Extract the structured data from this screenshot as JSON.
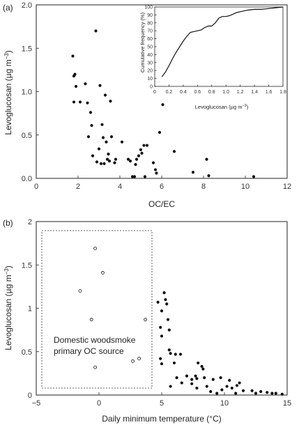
{
  "chart_data": [
    {
      "panel": "(a)",
      "type": "scatter",
      "xlabel": "OC/EC",
      "ylabel_main": "Levoglucosan (µg m",
      "ylabel_exp": "−3",
      "ylabel_close": ")",
      "xlim": [
        0,
        12
      ],
      "ylim": [
        0,
        2.0
      ],
      "xticks": [
        "0",
        "2",
        "4",
        "6",
        "8",
        "10",
        "12"
      ],
      "yticks": [
        "0.0",
        "0.5",
        "1.0",
        "1.5",
        "2.0"
      ],
      "points": [
        [
          1.75,
          1.41
        ],
        [
          1.8,
          1.18
        ],
        [
          1.85,
          1.2
        ],
        [
          1.9,
          1.06
        ],
        [
          1.8,
          0.88
        ],
        [
          2.1,
          0.88
        ],
        [
          2.35,
          1.09
        ],
        [
          2.45,
          0.87
        ],
        [
          2.5,
          0.48
        ],
        [
          2.6,
          0.76
        ],
        [
          2.65,
          0.61
        ],
        [
          2.7,
          0.26
        ],
        [
          2.85,
          1.7
        ],
        [
          2.9,
          0.19
        ],
        [
          3.0,
          0.34
        ],
        [
          3.05,
          1.07
        ],
        [
          3.1,
          0.17
        ],
        [
          3.15,
          0.62
        ],
        [
          3.2,
          0.47
        ],
        [
          3.25,
          0.17
        ],
        [
          3.3,
          0.96
        ],
        [
          3.35,
          0.42
        ],
        [
          3.4,
          0.22
        ],
        [
          3.45,
          0.28
        ],
        [
          3.5,
          0.2
        ],
        [
          3.55,
          0.89
        ],
        [
          3.6,
          0.48
        ],
        [
          3.75,
          0.18
        ],
        [
          3.8,
          0.22
        ],
        [
          4.1,
          0.42
        ],
        [
          4.4,
          0.22
        ],
        [
          4.5,
          0.2
        ],
        [
          4.6,
          0.02
        ],
        [
          4.7,
          0.02
        ],
        [
          4.75,
          0.16
        ],
        [
          4.8,
          0.22
        ],
        [
          4.9,
          0.26
        ],
        [
          5.0,
          0.33
        ],
        [
          5.05,
          0.29
        ],
        [
          5.15,
          0.38
        ],
        [
          5.2,
          0.02
        ],
        [
          5.3,
          0.38
        ],
        [
          5.6,
          0.18
        ],
        [
          5.7,
          0.1
        ],
        [
          5.75,
          0.06
        ],
        [
          5.9,
          0.53
        ],
        [
          6.05,
          0.85
        ],
        [
          6.6,
          0.31
        ],
        [
          7.5,
          0.07
        ],
        [
          8.15,
          0.22
        ],
        [
          8.25,
          0.03
        ],
        [
          10.4,
          0.02
        ]
      ]
    },
    {
      "panel": "inset",
      "type": "line",
      "xlabel_main": "Levoglucosan (µg m",
      "xlabel_exp": "−3",
      "xlabel_close": ")",
      "ylabel": "Cumulative frequency (%)",
      "xlim": [
        0,
        1.8
      ],
      "ylim": [
        0,
        100
      ],
      "xticks": [
        "0",
        "0.2",
        "0.4",
        "0.6",
        "0.8",
        "1.0",
        "1.2",
        "1.4",
        "1.6",
        "1.8"
      ],
      "yticks": [
        "0",
        "10",
        "20",
        "30",
        "40",
        "50",
        "60",
        "70",
        "80",
        "90",
        "100"
      ],
      "x": [
        0.1,
        0.15,
        0.2,
        0.25,
        0.3,
        0.35,
        0.4,
        0.45,
        0.5,
        0.55,
        0.6,
        0.65,
        0.7,
        0.75,
        0.8,
        0.85,
        0.9,
        0.95,
        1.0,
        1.05,
        1.1,
        1.15,
        1.2,
        1.3,
        1.4,
        1.5,
        1.6,
        1.7,
        1.8
      ],
      "y": [
        12,
        18,
        26,
        35,
        43,
        50,
        57,
        63,
        68,
        69,
        70,
        71,
        74,
        76,
        76,
        80,
        86,
        88,
        88,
        89,
        91,
        93,
        94,
        96,
        97,
        97,
        98,
        99,
        100
      ]
    },
    {
      "panel": "(b)",
      "type": "scatter",
      "xlabel_main": "Daily minimum temperature (",
      "xlabel_unit": "°C",
      "xlabel_close": ")",
      "ylabel_main": "Levoglucosan (µg m",
      "ylabel_exp": "−3",
      "ylabel_close": ")",
      "xlim": [
        -5,
        15
      ],
      "ylim": [
        0,
        2
      ],
      "xticks": [
        "−5",
        "0",
        "5",
        "10",
        "15"
      ],
      "yticks": [
        "0",
        "0.5",
        "1",
        "1.5",
        "2"
      ],
      "annotation": [
        "Domestic woodsmoke",
        "primary OC source"
      ],
      "open_points": [
        [
          -0.3,
          1.69
        ],
        [
          0.3,
          1.41
        ],
        [
          -1.5,
          1.2
        ],
        [
          -0.6,
          0.87
        ],
        [
          3.7,
          0.87
        ],
        [
          3.2,
          0.42
        ],
        [
          2.7,
          0.39
        ],
        [
          -0.3,
          0.32
        ]
      ],
      "filled_points": [
        [
          4.7,
          1.07
        ],
        [
          5.0,
          0.97
        ],
        [
          5.2,
          1.18
        ],
        [
          5.3,
          1.1
        ],
        [
          5.4,
          1.05
        ],
        [
          5.5,
          0.87
        ],
        [
          4.9,
          0.78
        ],
        [
          5.6,
          0.75
        ],
        [
          5.0,
          0.68
        ],
        [
          5.6,
          0.52
        ],
        [
          5.7,
          0.48
        ],
        [
          6.1,
          0.47
        ],
        [
          4.9,
          0.42
        ],
        [
          5.0,
          0.36
        ],
        [
          6.0,
          0.37
        ],
        [
          6.5,
          0.47
        ],
        [
          7.9,
          0.37
        ],
        [
          8.2,
          0.33
        ],
        [
          8.3,
          0.3
        ],
        [
          7.7,
          0.22
        ],
        [
          5.7,
          0.1
        ],
        [
          6.2,
          0.2
        ],
        [
          6.6,
          0.14
        ],
        [
          7.4,
          0.18
        ],
        [
          7.8,
          0.19
        ],
        [
          8.4,
          0.2
        ],
        [
          7.0,
          0.22
        ],
        [
          7.4,
          0.13
        ],
        [
          7.8,
          0.08
        ],
        [
          8.6,
          0.1
        ],
        [
          8.9,
          0.04
        ],
        [
          9.1,
          0.18
        ],
        [
          9.7,
          0.2
        ],
        [
          9.8,
          0.06
        ],
        [
          10.4,
          0.17
        ],
        [
          10.6,
          0.08
        ],
        [
          10.9,
          0.02
        ],
        [
          11.2,
          0.14
        ],
        [
          11.5,
          0.05
        ],
        [
          12.5,
          0.02
        ],
        [
          12.9,
          0.04
        ],
        [
          13.4,
          0.03
        ],
        [
          13.8,
          0.02
        ],
        [
          14.1,
          0.02
        ],
        [
          14.6,
          0.01
        ],
        [
          9.4,
          0.02
        ],
        [
          10.2,
          0.1
        ],
        [
          11.0,
          0.11
        ],
        [
          12.2,
          0.05
        ]
      ]
    }
  ]
}
